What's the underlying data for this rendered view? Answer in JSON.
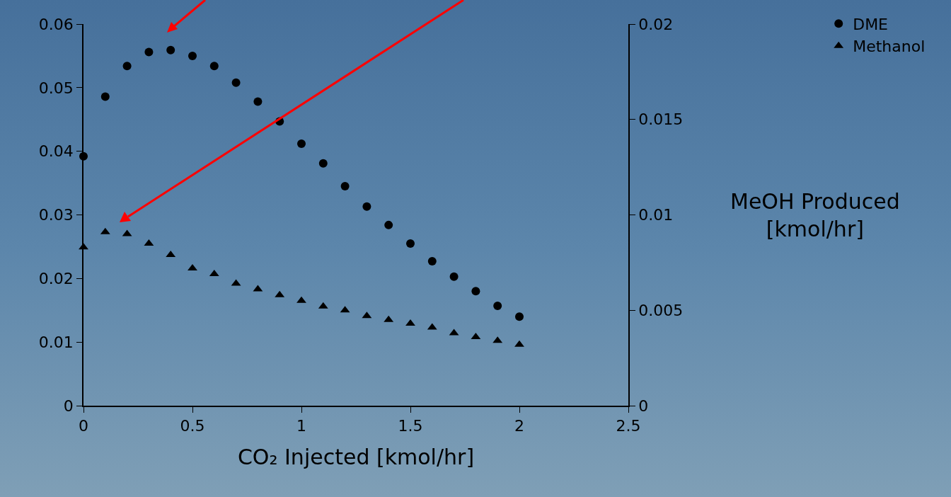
{
  "chart_data": {
    "type": "scatter",
    "xlabel": "CO₂ Injected [kmol/hr]",
    "y2label": "MeOH Produced [kmol/hr]",
    "x": [
      0,
      0.1,
      0.2,
      0.3,
      0.4,
      0.5,
      0.6,
      0.7,
      0.8,
      0.9,
      1,
      1.1,
      1.2,
      1.3,
      1.4,
      1.5,
      1.6,
      1.7,
      1.8,
      1.9,
      2
    ],
    "xlim": [
      0,
      2.5
    ],
    "xticks": [
      0,
      0.5,
      1,
      1.5,
      2,
      2.5
    ],
    "ylim": [
      0,
      0.06
    ],
    "yticks": [
      0,
      0.01,
      0.02,
      0.03,
      0.04,
      0.05,
      0.06
    ],
    "y2lim": [
      0,
      0.02
    ],
    "y2ticks": [
      0,
      0.005,
      0.01,
      0.015,
      0.02
    ],
    "grid": false,
    "legend": "top right",
    "series": [
      {
        "name": "DME",
        "color": "#000000",
        "marker": "circle",
        "values": [
          0.0392,
          0.0486,
          0.0534,
          0.0556,
          0.0559,
          0.055,
          0.0534,
          0.0508,
          0.0478,
          0.0447,
          0.0412,
          0.0381,
          0.0345,
          0.0313,
          0.0284,
          0.0255,
          0.0227,
          0.0203,
          0.018,
          0.0157,
          0.014
        ]
      },
      {
        "name": "Methanol",
        "color": "#000000",
        "marker": "triangle",
        "axis": "y2",
        "values": [
          0.0083,
          0.0091,
          0.009,
          0.0085,
          0.0079,
          0.0072,
          0.0069,
          0.0064,
          0.0061,
          0.0058,
          0.0055,
          0.0052,
          0.005,
          0.0047,
          0.0045,
          0.0043,
          0.0041,
          0.0038,
          0.0036,
          0.0034,
          0.0032
        ]
      }
    ]
  }
}
